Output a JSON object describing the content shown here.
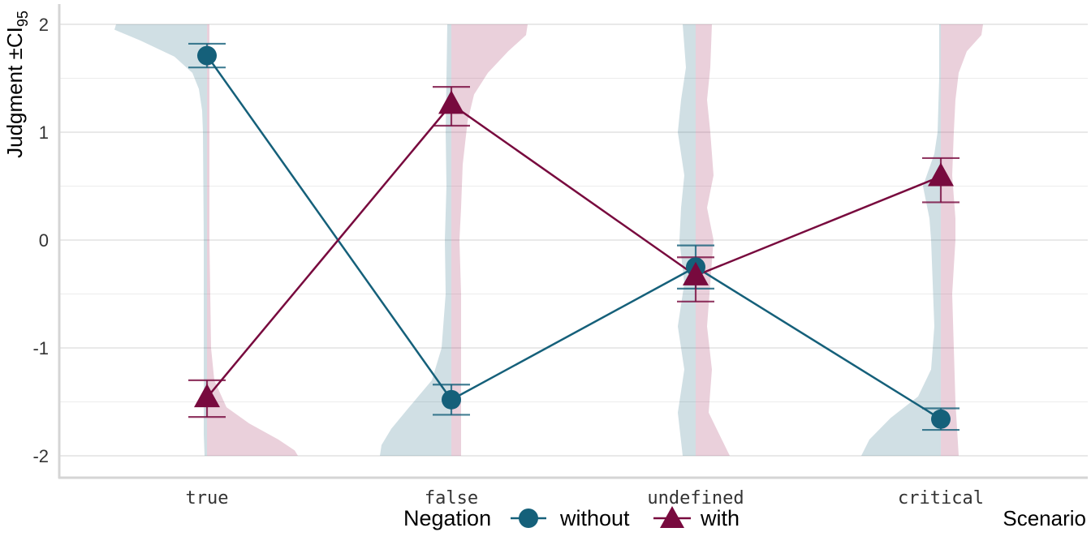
{
  "chart_data": {
    "type": "line",
    "xlabel": "Scenario",
    "ylabel_main": "Judgment ±CI",
    "ylabel_sub": "95",
    "categories": [
      "true",
      "false",
      "undefined",
      "critical"
    ],
    "ylim": [
      -2.1,
      2.1
    ],
    "yticks": [
      2,
      1,
      0,
      -1,
      -2
    ],
    "grid": true,
    "legend": {
      "title": "Negation",
      "placement": "bottom",
      "entries": [
        "without",
        "with"
      ]
    },
    "series": [
      {
        "name": "without",
        "color": "#15607a",
        "marker": "circle",
        "values": [
          1.71,
          -1.48,
          -0.25,
          -1.66
        ],
        "ci_low": [
          1.6,
          -1.62,
          -0.45,
          -1.76
        ],
        "ci_high": [
          1.82,
          -1.34,
          -0.05,
          -1.56
        ]
      },
      {
        "name": "with",
        "color": "#780a3e",
        "marker": "triangle",
        "values": [
          -1.46,
          1.26,
          -0.33,
          0.59
        ],
        "ci_low": [
          -1.64,
          1.06,
          -0.57,
          0.35
        ],
        "ci_high": [
          -1.3,
          1.42,
          -0.16,
          0.76
        ]
      }
    ]
  }
}
